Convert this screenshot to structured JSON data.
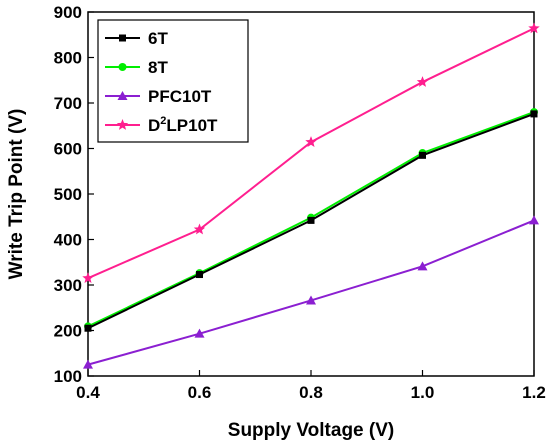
{
  "chart_data": {
    "type": "line",
    "xlabel": "Supply Voltage (V)",
    "ylabel": "Write Trip Point (V)",
    "xlim": [
      0.4,
      1.2
    ],
    "ylim": [
      100,
      900
    ],
    "x": [
      0.4,
      0.6,
      0.8,
      1.0,
      1.2
    ],
    "xticks": [
      "0.4",
      "0.6",
      "0.8",
      "1.0",
      "1.2"
    ],
    "yticks": [
      "100",
      "200",
      "300",
      "400",
      "500",
      "600",
      "700",
      "800",
      "900"
    ],
    "legend_position": "top-left",
    "grid": false,
    "series": [
      {
        "name": "6T",
        "color": "#000000",
        "marker": "square",
        "values": [
          205,
          323,
          442,
          585,
          676
        ]
      },
      {
        "name": "8T",
        "color": "#00ee00",
        "marker": "circle",
        "values": [
          209,
          326,
          448,
          590,
          680
        ]
      },
      {
        "name": "PFC10T",
        "color": "#8b1fd1",
        "marker": "triangle",
        "values": [
          125,
          193,
          266,
          341,
          442
        ]
      },
      {
        "name": "LP10T",
        "name_prefix": "D",
        "name_sup": "2",
        "color": "#ff1f8f",
        "marker": "star",
        "values": [
          315,
          422,
          614,
          746,
          864
        ]
      }
    ]
  }
}
